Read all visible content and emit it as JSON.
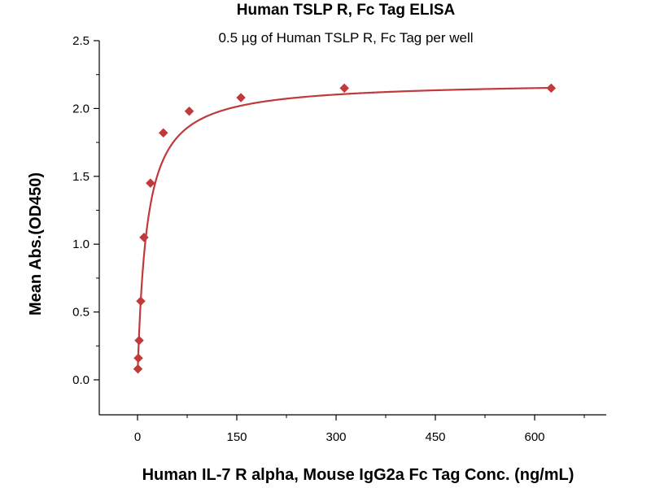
{
  "chart_data": {
    "type": "scatter",
    "title": "Human TSLP R, Fc Tag ELISA",
    "subtitle": "0.5 µg of Human TSLP R, Fc Tag per well",
    "xlabel": "Human IL-7 R alpha, Mouse IgG2a Fc Tag Conc. (ng/mL)",
    "ylabel": "Mean Abs.(OD450)",
    "xlim": [
      -60,
      700
    ],
    "ylim": [
      -0.25,
      2.5
    ],
    "xticks": [
      0,
      150,
      300,
      450,
      600
    ],
    "xtick_labels": [
      "0",
      "150",
      "300",
      "450",
      "600"
    ],
    "yticks": [
      0.0,
      0.5,
      1.0,
      1.5,
      2.0,
      2.5
    ],
    "ytick_labels": [
      "0.0",
      "0.5",
      "1.0",
      "1.5",
      "2.0",
      "2.5"
    ],
    "grid": false,
    "series": [
      {
        "color": "#c0393b",
        "marker": "diamond",
        "x": [
          0.61,
          1.22,
          2.44,
          4.88,
          9.77,
          19.53,
          39.06,
          78.13,
          156.25,
          312.5,
          625
        ],
        "y": [
          0.08,
          0.16,
          0.29,
          0.58,
          1.05,
          1.45,
          1.82,
          1.98,
          2.08,
          2.15,
          2.15
        ]
      }
    ],
    "fit": {
      "color": "#c0393b",
      "bottom": 0.02,
      "top": 2.2,
      "ec50": 14,
      "hill": 1.0
    }
  }
}
